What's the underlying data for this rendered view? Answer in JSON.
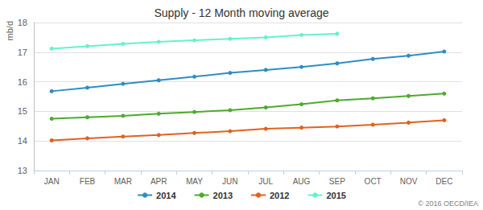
{
  "chart_data": {
    "type": "line",
    "title": "Supply - 12 Month moving average",
    "y_label": "mb/d",
    "categories": [
      "JAN",
      "FEB",
      "MAR",
      "APR",
      "MAY",
      "JUN",
      "JUL",
      "AUG",
      "SEP",
      "OCT",
      "NOV",
      "DEC"
    ],
    "series": [
      {
        "name": "2014",
        "color": "#2f8dc4",
        "values": [
          15.68,
          15.8,
          15.93,
          16.05,
          16.17,
          16.3,
          16.4,
          16.5,
          16.62,
          16.77,
          16.88,
          17.02
        ]
      },
      {
        "name": "2013",
        "color": "#4eaa2e",
        "values": [
          14.75,
          14.8,
          14.85,
          14.92,
          14.98,
          15.04,
          15.13,
          15.24,
          15.37,
          15.44,
          15.52,
          15.6
        ]
      },
      {
        "name": "2012",
        "color": "#e2611d",
        "values": [
          14.02,
          14.09,
          14.15,
          14.2,
          14.27,
          14.33,
          14.41,
          14.45,
          14.49,
          14.55,
          14.62,
          14.7
        ]
      },
      {
        "name": "2015",
        "color": "#66f2c8",
        "values": [
          17.12,
          17.2,
          17.28,
          17.35,
          17.4,
          17.45,
          17.5,
          17.58,
          17.62,
          null,
          null,
          null
        ]
      }
    ],
    "ylim": [
      13,
      18
    ],
    "yticks": [
      13,
      14,
      15,
      16,
      17,
      18
    ],
    "grid": true,
    "legend": "bottom",
    "marker": "circle",
    "line_style": "solid",
    "annotations": [
      "© 2016 OECD/IEA"
    ]
  }
}
